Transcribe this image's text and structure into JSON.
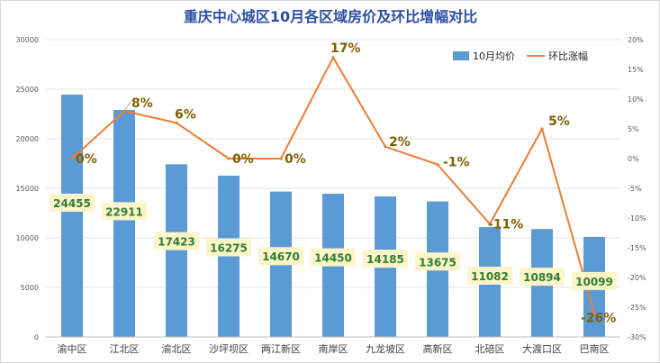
{
  "chart_data": {
    "type": "bar",
    "title": "重庆中心城区10月各区域房价及环比增幅对比",
    "categories": [
      "渝中区",
      "江北区",
      "渝北区",
      "沙坪坝区",
      "两江新区",
      "南岸区",
      "九龙坡区",
      "高新区",
      "北碚区",
      "大渡口区",
      "巴南区"
    ],
    "series": [
      {
        "name": "10月均价",
        "type": "bar",
        "axis": "left",
        "values": [
          24455,
          22911,
          17423,
          16275,
          14670,
          14450,
          14185,
          13675,
          11082,
          10894,
          10099
        ],
        "labels": [
          "24455",
          "22911",
          "17423",
          "16275",
          "14670",
          "14450",
          "14185",
          "13675",
          "11082",
          "10894",
          "10099"
        ]
      },
      {
        "name": "环比涨幅",
        "type": "line",
        "axis": "right",
        "values": [
          0,
          8,
          6,
          0,
          0,
          17,
          2,
          -1,
          -11,
          5,
          -26
        ],
        "labels": [
          "0%",
          "8%",
          "6%",
          "0%",
          "0%",
          "17%",
          "2%",
          "-1%",
          "-11%",
          "5%",
          "-26%"
        ]
      }
    ],
    "y_left": {
      "range": [
        0,
        30000
      ],
      "ticks": [
        "0",
        "5000",
        "10000",
        "15000",
        "20000",
        "25000",
        "30000"
      ]
    },
    "y_right": {
      "range": [
        -30,
        20
      ],
      "unit": "%",
      "ticks": [
        "-30%",
        "-25%",
        "-20%",
        "-15%",
        "-10%",
        "-5%",
        "0%",
        "5%",
        "10%",
        "15%",
        "20%"
      ]
    },
    "grid": true,
    "legend_position": "top-right",
    "colors": {
      "bar": "#5b9bd5",
      "line": "#ed7d31",
      "title": "#2d4ea5",
      "bar_label_text": "#2e7d32",
      "bar_label_bg": "#fdf5c9",
      "line_label_text": "#7f6000"
    }
  }
}
